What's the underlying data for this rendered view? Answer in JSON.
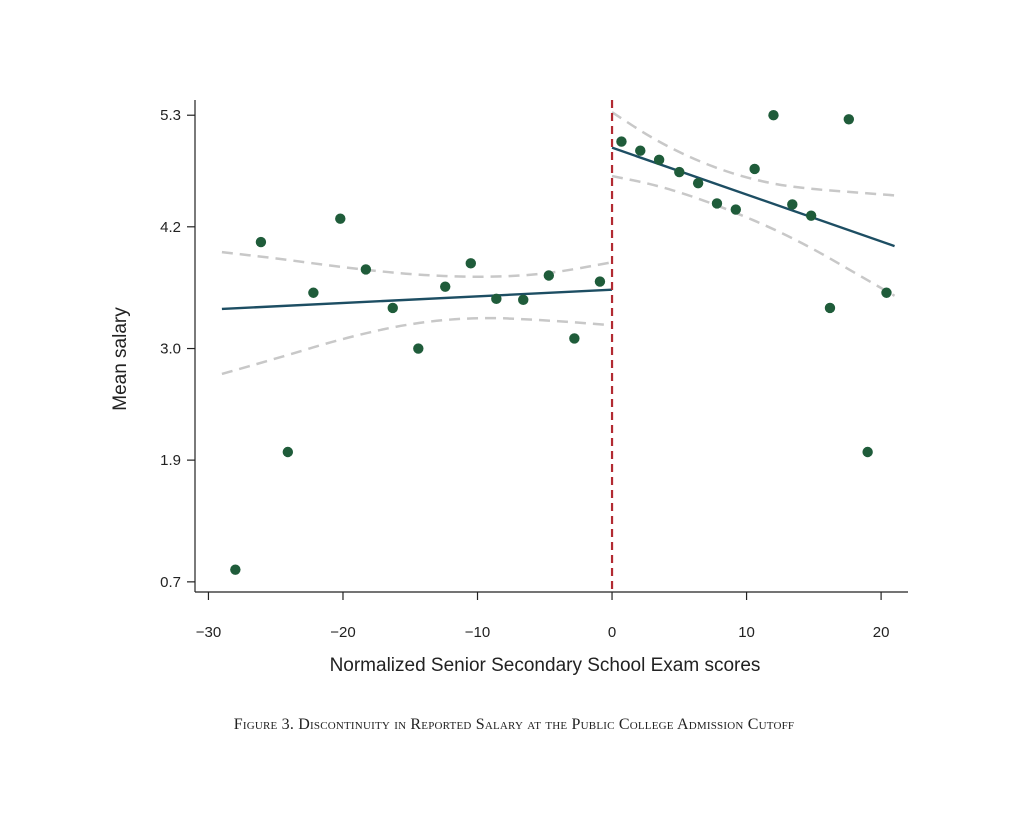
{
  "chart_data": {
    "type": "scatter",
    "title": "",
    "xlabel": "Normalized Senior Secondary School Exam scores",
    "ylabel": "Mean salary",
    "xlim": [
      -31,
      22
    ],
    "ylim": [
      0.6,
      5.45
    ],
    "xticks": [
      -30,
      -20,
      -10,
      0,
      10,
      20
    ],
    "xtick_labels": [
      "−30",
      "−20",
      "−10",
      "0",
      "10",
      "20"
    ],
    "yticks": [
      0.7,
      1.9,
      3.0,
      4.2,
      5.3
    ],
    "ytick_labels": [
      "0.7",
      "1.9",
      "3.0",
      "4.2",
      "5.3"
    ],
    "cutoff_x": 0,
    "colors": {
      "points": "#1f5c3a",
      "fit": "#1d4e63",
      "ci": "#c8c8c8",
      "cutoff": "#b22a32",
      "axis": "#222222"
    },
    "points": [
      {
        "x": -28.0,
        "y": 0.82
      },
      {
        "x": -26.1,
        "y": 4.05
      },
      {
        "x": -24.1,
        "y": 1.98
      },
      {
        "x": -22.2,
        "y": 3.55
      },
      {
        "x": -20.2,
        "y": 4.28
      },
      {
        "x": -18.3,
        "y": 3.78
      },
      {
        "x": -16.3,
        "y": 3.4
      },
      {
        "x": -14.4,
        "y": 3.0
      },
      {
        "x": -12.4,
        "y": 3.61
      },
      {
        "x": -10.5,
        "y": 3.84
      },
      {
        "x": -8.6,
        "y": 3.49
      },
      {
        "x": -6.6,
        "y": 3.48
      },
      {
        "x": -4.7,
        "y": 3.72
      },
      {
        "x": -2.8,
        "y": 3.1
      },
      {
        "x": -0.9,
        "y": 3.66
      },
      {
        "x": 0.7,
        "y": 5.04
      },
      {
        "x": 2.1,
        "y": 4.95
      },
      {
        "x": 3.5,
        "y": 4.86
      },
      {
        "x": 5.0,
        "y": 4.74
      },
      {
        "x": 6.4,
        "y": 4.63
      },
      {
        "x": 7.8,
        "y": 4.43
      },
      {
        "x": 9.2,
        "y": 4.37
      },
      {
        "x": 10.6,
        "y": 4.77
      },
      {
        "x": 12.0,
        "y": 5.3
      },
      {
        "x": 13.4,
        "y": 4.42
      },
      {
        "x": 14.8,
        "y": 4.31
      },
      {
        "x": 16.2,
        "y": 3.4
      },
      {
        "x": 17.6,
        "y": 5.26
      },
      {
        "x": 19.0,
        "y": 1.98
      },
      {
        "x": 20.4,
        "y": 3.55
      }
    ],
    "fit_lines": [
      {
        "name": "left-fit",
        "x": [
          -29,
          0
        ],
        "y": [
          3.39,
          3.58
        ]
      },
      {
        "name": "right-fit",
        "x": [
          0,
          21
        ],
        "y": [
          4.98,
          4.01
        ]
      }
    ],
    "ci_bands": [
      {
        "name": "left-upper",
        "x": [
          -29,
          -25,
          -20,
          -15,
          -10,
          -5,
          0
        ],
        "y": [
          3.95,
          3.89,
          3.8,
          3.73,
          3.7,
          3.73,
          3.85
        ]
      },
      {
        "name": "left-lower",
        "x": [
          -29,
          -25,
          -20,
          -15,
          -10,
          -5,
          0
        ],
        "y": [
          2.75,
          2.9,
          3.1,
          3.25,
          3.31,
          3.28,
          3.23
        ]
      },
      {
        "name": "right-upper",
        "x": [
          0,
          3,
          6,
          9,
          12,
          15,
          18,
          21
        ],
        "y": [
          5.33,
          5.07,
          4.87,
          4.72,
          4.62,
          4.57,
          4.54,
          4.51
        ]
      },
      {
        "name": "right-lower",
        "x": [
          0,
          3,
          6,
          9,
          12,
          15,
          18,
          21
        ],
        "y": [
          4.7,
          4.62,
          4.5,
          4.35,
          4.18,
          3.98,
          3.75,
          3.52
        ]
      }
    ]
  },
  "caption": "Figure 3. Discontinuity in Reported Salary at the Public College Admission Cutoff"
}
